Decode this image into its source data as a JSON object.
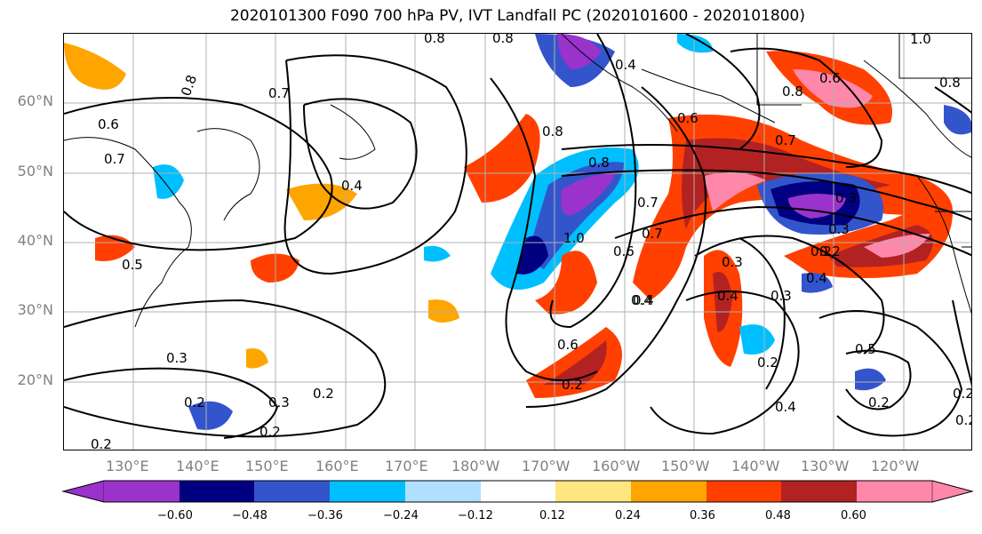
{
  "title": "2020101300 F090 700 hPa PV, IVT Landfall PC (2020101600 - 2020101800)",
  "lat_labels": [
    "60°N",
    "50°N",
    "40°N",
    "30°N",
    "20°N"
  ],
  "lon_labels": [
    "130°E",
    "140°E",
    "150°E",
    "160°E",
    "170°E",
    "180°W",
    "170°W",
    "160°W",
    "150°W",
    "140°W",
    "130°W",
    "120°W"
  ],
  "colorbar": {
    "tick_labels": [
      "−0.60",
      "−0.48",
      "−0.36",
      "−0.24",
      "−0.12",
      "0.12",
      "0.24",
      "0.36",
      "0.48",
      "0.60"
    ],
    "colors": [
      "#9933cc",
      "#000080",
      "#3355cc",
      "#00bfff",
      "#b0e0ff",
      "#ffffff",
      "#ffe680",
      "#ffa500",
      "#ff4000",
      "#b22222",
      "#ff88aa"
    ]
  },
  "contour_labels": [
    "0.8",
    "0.8",
    "1.0",
    "0.8",
    "0.7",
    "0.6",
    "0.6",
    "0.7",
    "0.4",
    "0.5",
    "0.8",
    "0.4",
    "0.8",
    "1.0",
    "0.6",
    "0.7",
    "0.8",
    "0.7",
    "0.3",
    "0.4",
    "0.3",
    "0.2",
    "0.4",
    "0.3",
    "0.2",
    "0.4",
    "0.5",
    "0.2",
    "0.2",
    "0.3",
    "0.2",
    "0.3",
    "0.2",
    "0.2",
    "0.6",
    "0.2",
    "0.4",
    "0.2",
    "0.2",
    "0.4",
    "0.7",
    "0.6",
    "0.2",
    "0.8",
    "0.3"
  ]
}
